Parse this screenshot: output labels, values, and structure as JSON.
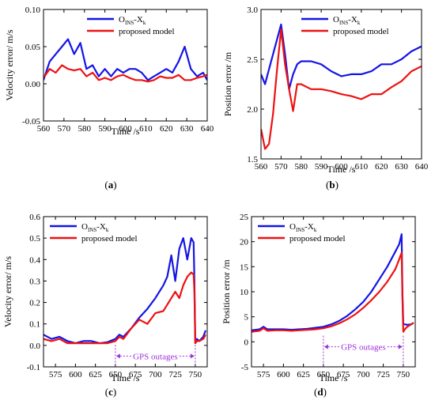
{
  "colors": {
    "series_a": "#1414e6",
    "series_b": "#ee1111",
    "annotation": "#9b30d9",
    "axis": "#000000"
  },
  "chart_data": [
    {
      "type": "line",
      "panel": "a",
      "panel_label": "a",
      "xlabel": "Time /s",
      "ylabel": "Velocity error/ m/s",
      "xlim": [
        560,
        640
      ],
      "ylim": [
        -0.05,
        0.1
      ],
      "xticks": [
        560,
        570,
        580,
        590,
        600,
        610,
        620,
        630,
        640
      ],
      "yticks": [
        -0.05,
        0,
        0.05,
        0.1
      ],
      "ytick_labels": [
        "-0.05",
        "0.00",
        "0.05",
        "0.10"
      ],
      "legend_position": "top-right",
      "annotations": [],
      "series": [
        {
          "name": "OINS-Xk",
          "name_main": "O",
          "name_sub1": "INS",
          "name_mid": "-X",
          "name_sub2": "k",
          "color": "#1414e6",
          "x": [
            560,
            563,
            566,
            569,
            572,
            575,
            578,
            581,
            584,
            587,
            590,
            593,
            596,
            599,
            602,
            605,
            608,
            611,
            614,
            617,
            620,
            623,
            626,
            629,
            632,
            635,
            638,
            640
          ],
          "y": [
            0.005,
            0.03,
            0.04,
            0.05,
            0.06,
            0.04,
            0.055,
            0.02,
            0.025,
            0.01,
            0.02,
            0.01,
            0.02,
            0.015,
            0.02,
            0.02,
            0.015,
            0.005,
            0.01,
            0.015,
            0.02,
            0.015,
            0.03,
            0.05,
            0.02,
            0.01,
            0.015,
            0.005
          ]
        },
        {
          "name": "proposed model",
          "color": "#ee1111",
          "x": [
            560,
            563,
            566,
            569,
            572,
            575,
            578,
            581,
            584,
            587,
            590,
            593,
            596,
            599,
            602,
            605,
            608,
            611,
            614,
            617,
            620,
            623,
            626,
            629,
            632,
            635,
            638,
            640
          ],
          "y": [
            0.008,
            0.02,
            0.015,
            0.025,
            0.02,
            0.018,
            0.02,
            0.01,
            0.015,
            0.005,
            0.008,
            0.005,
            0.01,
            0.012,
            0.008,
            0.005,
            0.005,
            0.003,
            0.005,
            0.01,
            0.008,
            0.008,
            0.012,
            0.005,
            0.005,
            0.008,
            0.01,
            0.012
          ]
        }
      ]
    },
    {
      "type": "line",
      "panel": "b",
      "panel_label": "b",
      "xlabel": "Time /s",
      "ylabel": "Position error /m",
      "xlim": [
        560,
        640
      ],
      "ylim": [
        1.5,
        3.0
      ],
      "xticks": [
        560,
        570,
        580,
        590,
        600,
        610,
        620,
        630,
        640
      ],
      "yticks": [
        1.5,
        2.0,
        2.5,
        3.0
      ],
      "ytick_labels": [
        "1.5",
        "2.0",
        "2.5",
        "3.0"
      ],
      "legend_position": "top-right",
      "annotations": [],
      "series": [
        {
          "name": "OINS-Xk",
          "name_main": "O",
          "name_sub1": "INS",
          "name_mid": "-X",
          "name_sub2": "k",
          "color": "#1414e6",
          "x": [
            560,
            562,
            564,
            566,
            568,
            570,
            572,
            574,
            576,
            578,
            580,
            585,
            590,
            595,
            600,
            605,
            610,
            615,
            620,
            625,
            630,
            635,
            640
          ],
          "y": [
            2.35,
            2.25,
            2.4,
            2.55,
            2.7,
            2.85,
            2.55,
            2.2,
            2.35,
            2.45,
            2.48,
            2.48,
            2.45,
            2.38,
            2.33,
            2.35,
            2.35,
            2.38,
            2.45,
            2.45,
            2.5,
            2.58,
            2.63
          ]
        },
        {
          "name": "proposed model",
          "color": "#ee1111",
          "x": [
            560,
            562,
            564,
            566,
            568,
            570,
            572,
            574,
            576,
            578,
            580,
            585,
            590,
            595,
            600,
            605,
            610,
            615,
            620,
            625,
            630,
            635,
            640
          ],
          "y": [
            1.8,
            1.6,
            1.65,
            1.95,
            2.4,
            2.8,
            2.45,
            2.2,
            1.98,
            2.25,
            2.25,
            2.2,
            2.2,
            2.18,
            2.15,
            2.13,
            2.1,
            2.15,
            2.15,
            2.22,
            2.28,
            2.38,
            2.43
          ]
        }
      ]
    },
    {
      "type": "line",
      "panel": "c",
      "panel_label": "c",
      "xlabel": "Time /s",
      "ylabel": "Velocity error/ m/s",
      "xlim": [
        560,
        765
      ],
      "ylim": [
        -0.1,
        0.6
      ],
      "xticks": [
        575,
        600,
        625,
        650,
        675,
        700,
        725,
        750
      ],
      "yticks": [
        -0.1,
        0.0,
        0.1,
        0.2,
        0.3,
        0.4,
        0.5,
        0.6
      ],
      "ytick_labels": [
        "-0.1",
        "0.0",
        "0.1",
        "0.2",
        "0.3",
        "0.4",
        "0.5",
        "0.6"
      ],
      "legend_position": "top-left",
      "annotations": [
        {
          "text": "GPS outages",
          "x_start": 650,
          "x_end": 750,
          "y": -0.05
        }
      ],
      "series": [
        {
          "name": "OINS-Xk",
          "name_main": "O",
          "name_sub1": "INS",
          "name_mid": "-X",
          "name_sub2": "k",
          "color": "#1414e6",
          "x": [
            560,
            570,
            580,
            590,
            600,
            610,
            620,
            630,
            640,
            650,
            655,
            660,
            670,
            680,
            690,
            700,
            710,
            715,
            720,
            725,
            730,
            735,
            740,
            745,
            748,
            749,
            750,
            752,
            755,
            760,
            763
          ],
          "y": [
            0.05,
            0.03,
            0.04,
            0.02,
            0.01,
            0.02,
            0.02,
            0.01,
            0.015,
            0.03,
            0.05,
            0.04,
            0.08,
            0.13,
            0.17,
            0.22,
            0.28,
            0.32,
            0.42,
            0.3,
            0.45,
            0.5,
            0.4,
            0.5,
            0.48,
            0.3,
            0.01,
            0.03,
            0.02,
            0.04,
            0.07
          ]
        },
        {
          "name": "proposed model",
          "color": "#ee1111",
          "x": [
            560,
            570,
            580,
            590,
            600,
            610,
            620,
            630,
            640,
            650,
            655,
            660,
            670,
            680,
            690,
            700,
            710,
            715,
            720,
            725,
            730,
            735,
            740,
            745,
            748,
            749,
            750,
            752,
            755,
            760,
            763
          ],
          "y": [
            0.03,
            0.02,
            0.03,
            0.01,
            0.01,
            0.01,
            0.01,
            0.01,
            0.01,
            0.02,
            0.04,
            0.03,
            0.08,
            0.12,
            0.1,
            0.15,
            0.16,
            0.19,
            0.22,
            0.25,
            0.22,
            0.28,
            0.32,
            0.34,
            0.33,
            0.25,
            0.01,
            0.02,
            0.02,
            0.03,
            0.05
          ]
        }
      ]
    },
    {
      "type": "line",
      "panel": "d",
      "panel_label": "d",
      "xlabel": "Time /s",
      "ylabel": "Position error /m",
      "xlim": [
        560,
        765
      ],
      "ylim": [
        -5,
        25
      ],
      "xticks": [
        575,
        600,
        625,
        650,
        675,
        700,
        725,
        750
      ],
      "yticks": [
        -5,
        0,
        5,
        10,
        15,
        20,
        25
      ],
      "ytick_labels": [
        "-5",
        "0",
        "5",
        "10",
        "15",
        "20",
        "25"
      ],
      "legend_position": "top-left",
      "annotations": [
        {
          "text": "GPS outages",
          "x_start": 650,
          "x_end": 750,
          "y": -1
        }
      ],
      "series": [
        {
          "name": "OINS-Xk",
          "name_main": "O",
          "name_sub1": "INS",
          "name_mid": "-X",
          "name_sub2": "k",
          "color": "#1414e6",
          "x": [
            560,
            570,
            575,
            580,
            590,
            600,
            610,
            620,
            630,
            640,
            650,
            660,
            670,
            680,
            690,
            700,
            710,
            720,
            730,
            740,
            745,
            748,
            749,
            750,
            752,
            755,
            760,
            763
          ],
          "y": [
            2.3,
            2.5,
            3,
            2.5,
            2.5,
            2.5,
            2.4,
            2.5,
            2.6,
            2.8,
            3,
            3.5,
            4.2,
            5.2,
            6.5,
            8,
            10,
            12.5,
            15,
            18,
            19.5,
            21.5,
            10,
            3.5,
            3.5,
            3.4,
            3.5,
            3.8
          ]
        },
        {
          "name": "proposed model",
          "color": "#ee1111",
          "x": [
            560,
            570,
            575,
            580,
            590,
            600,
            610,
            620,
            630,
            640,
            650,
            660,
            670,
            680,
            690,
            700,
            710,
            720,
            730,
            740,
            745,
            748,
            749,
            750,
            752,
            755,
            760,
            763
          ],
          "y": [
            2,
            2.2,
            2.7,
            2.2,
            2.3,
            2.3,
            2.2,
            2.3,
            2.4,
            2.5,
            2.7,
            3.1,
            3.7,
            4.5,
            5.5,
            6.8,
            8.3,
            10,
            12,
            14.5,
            16.5,
            17.8,
            9,
            2,
            2.5,
            3,
            3.5,
            3.8
          ]
        }
      ]
    }
  ]
}
